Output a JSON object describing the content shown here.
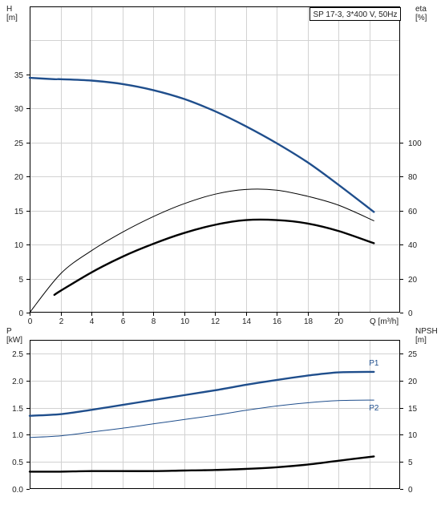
{
  "chart_data": [
    {
      "type": "line",
      "title": "SP 17-3, 3*400 V, 50Hz",
      "y_label": [
        "H",
        "[m]"
      ],
      "y2_label": [
        "eta",
        "[%]"
      ],
      "x_label": "Q [m³/h]",
      "xlim": [
        0,
        24
      ],
      "ylim": [
        0,
        45
      ],
      "y2lim": [
        0,
        180
      ],
      "x_ticks": [
        "0",
        "2",
        "4",
        "6",
        "8",
        "10",
        "12",
        "14",
        "16",
        "18",
        "20"
      ],
      "y_ticks": [
        "0",
        "5",
        "10",
        "15",
        "20",
        "25",
        "30",
        "35"
      ],
      "y2_ticks": [
        "0",
        "20",
        "40",
        "60",
        "80",
        "100"
      ],
      "grid": true,
      "series": [
        {
          "axis": "left",
          "color": "#1f4e8c",
          "weight": "bold",
          "range": "from 1.6",
          "x": [
            0,
            1.6,
            2,
            4,
            6,
            8,
            10,
            12,
            14,
            16,
            18,
            20,
            22.3
          ],
          "y": [
            34.5,
            34.3,
            34.3,
            34.1,
            33.6,
            32.7,
            31.4,
            29.6,
            27.4,
            24.9,
            22.1,
            18.8,
            14.8
          ]
        },
        {
          "axis": "right",
          "color": "#000000",
          "weight": "thin",
          "x": [
            0,
            2,
            4,
            6,
            8,
            10,
            12,
            14,
            16,
            18,
            20,
            22.3
          ],
          "y": [
            0,
            22.8,
            36.4,
            47.2,
            56.4,
            64,
            69.6,
            72.4,
            72,
            68.4,
            63.2,
            54
          ]
        },
        {
          "axis": "right",
          "color": "#000000",
          "weight": "bold",
          "x": [
            1.6,
            2,
            4,
            6,
            8,
            10,
            12,
            14,
            16,
            18,
            20,
            22.3
          ],
          "y": [
            10.4,
            12.8,
            23.6,
            32.8,
            40.4,
            46.8,
            51.6,
            54.4,
            54.4,
            52.4,
            48,
            40.8
          ]
        }
      ]
    },
    {
      "type": "line",
      "y_label": [
        "P",
        "[kW]"
      ],
      "y2_label": [
        "NPSH",
        "[m]"
      ],
      "xlim": [
        0,
        24
      ],
      "ylim": [
        0,
        2.75
      ],
      "y2lim": [
        0,
        27.5
      ],
      "y_ticks": [
        "0.0",
        "0.5",
        "1.0",
        "1.5",
        "2.0",
        "2.5"
      ],
      "y2_ticks": [
        "0",
        "5",
        "10",
        "15",
        "20",
        "25"
      ],
      "grid": true,
      "series": [
        {
          "name": "P1",
          "axis": "left",
          "color": "#1f4e8c",
          "weight": "bold",
          "x": [
            0,
            2,
            4,
            6,
            8,
            10,
            12,
            14,
            16,
            18,
            20,
            22.3
          ],
          "y": [
            1.35,
            1.38,
            1.46,
            1.55,
            1.64,
            1.73,
            1.82,
            1.92,
            2.01,
            2.09,
            2.15,
            2.16
          ]
        },
        {
          "name": "P2",
          "axis": "left",
          "color": "#1f4e8c",
          "weight": "thin",
          "x": [
            0,
            2,
            4,
            6,
            8,
            10,
            12,
            14,
            16,
            18,
            20,
            22.3
          ],
          "y": [
            0.95,
            0.98,
            1.05,
            1.12,
            1.2,
            1.28,
            1.36,
            1.45,
            1.53,
            1.59,
            1.63,
            1.64
          ]
        },
        {
          "axis": "right",
          "color": "#000000",
          "weight": "bold",
          "x": [
            0,
            2,
            4,
            6,
            8,
            10,
            12,
            14,
            16,
            18,
            20,
            22.3
          ],
          "y": [
            3.2,
            3.2,
            3.3,
            3.3,
            3.3,
            3.4,
            3.5,
            3.7,
            4,
            4.5,
            5.2,
            6
          ]
        }
      ]
    }
  ]
}
